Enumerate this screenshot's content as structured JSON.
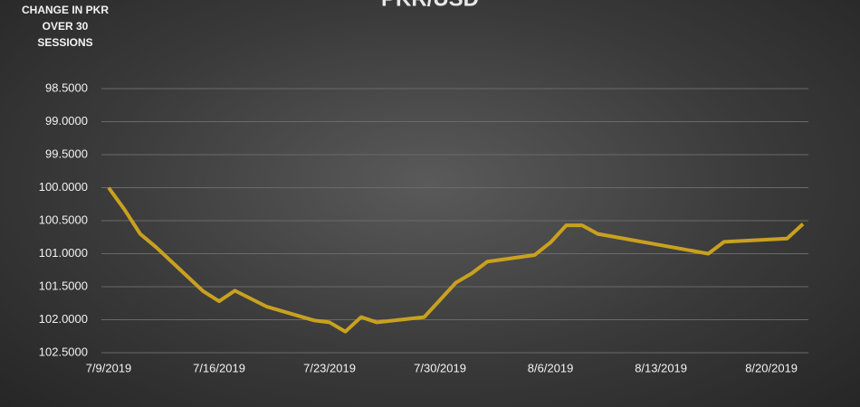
{
  "chart_data": {
    "type": "line",
    "title": "PKR/USD",
    "y_label": "CHANGE IN PKR OVER 30 SESSIONS",
    "x": [
      "7/9/2019",
      "7/10/2019",
      "7/11/2019",
      "7/12/2019",
      "7/15/2019",
      "7/16/2019",
      "7/17/2019",
      "7/18/2019",
      "7/19/2019",
      "7/22/2019",
      "7/23/2019",
      "7/24/2019",
      "7/25/2019",
      "7/26/2019",
      "7/29/2019",
      "7/30/2019",
      "7/31/2019",
      "8/1/2019",
      "8/2/2019",
      "8/5/2019",
      "8/6/2019",
      "8/7/2019",
      "8/8/2019",
      "8/9/2019",
      "8/16/2019",
      "8/17/2019",
      "8/21/2019",
      "8/22/2019"
    ],
    "series": [
      {
        "name": "PKR/USD",
        "color": "#c9a11f",
        "values": [
          100.0,
          100.33,
          100.7,
          100.9,
          101.57,
          101.72,
          101.56,
          101.68,
          101.8,
          102.01,
          102.04,
          102.18,
          101.96,
          102.04,
          101.96,
          101.7,
          101.44,
          101.3,
          101.12,
          101.02,
          100.83,
          100.57,
          100.57,
          100.7,
          101.0,
          100.82,
          100.77,
          100.55
        ]
      }
    ],
    "xlim": [
      "7/9/2019",
      "8/22/2019"
    ],
    "xticks": [
      "7/9/2019",
      "7/16/2019",
      "7/23/2019",
      "7/30/2019",
      "8/6/2019",
      "8/13/2019",
      "8/20/2019"
    ],
    "ylim": [
      98.5,
      102.5
    ],
    "y_reversed": true,
    "yticks": [
      {
        "value": 98.5,
        "label": "98.5000"
      },
      {
        "value": 99.0,
        "label": "99.0000"
      },
      {
        "value": 99.5,
        "label": "99.5000"
      },
      {
        "value": 100.0,
        "label": "100.0000"
      },
      {
        "value": 100.5,
        "label": "100.5000"
      },
      {
        "value": 101.0,
        "label": "101.0000"
      },
      {
        "value": 101.5,
        "label": "101.5000"
      },
      {
        "value": 102.0,
        "label": "102.0000"
      },
      {
        "value": 102.5,
        "label": "102.5000"
      }
    ],
    "grid": true
  }
}
